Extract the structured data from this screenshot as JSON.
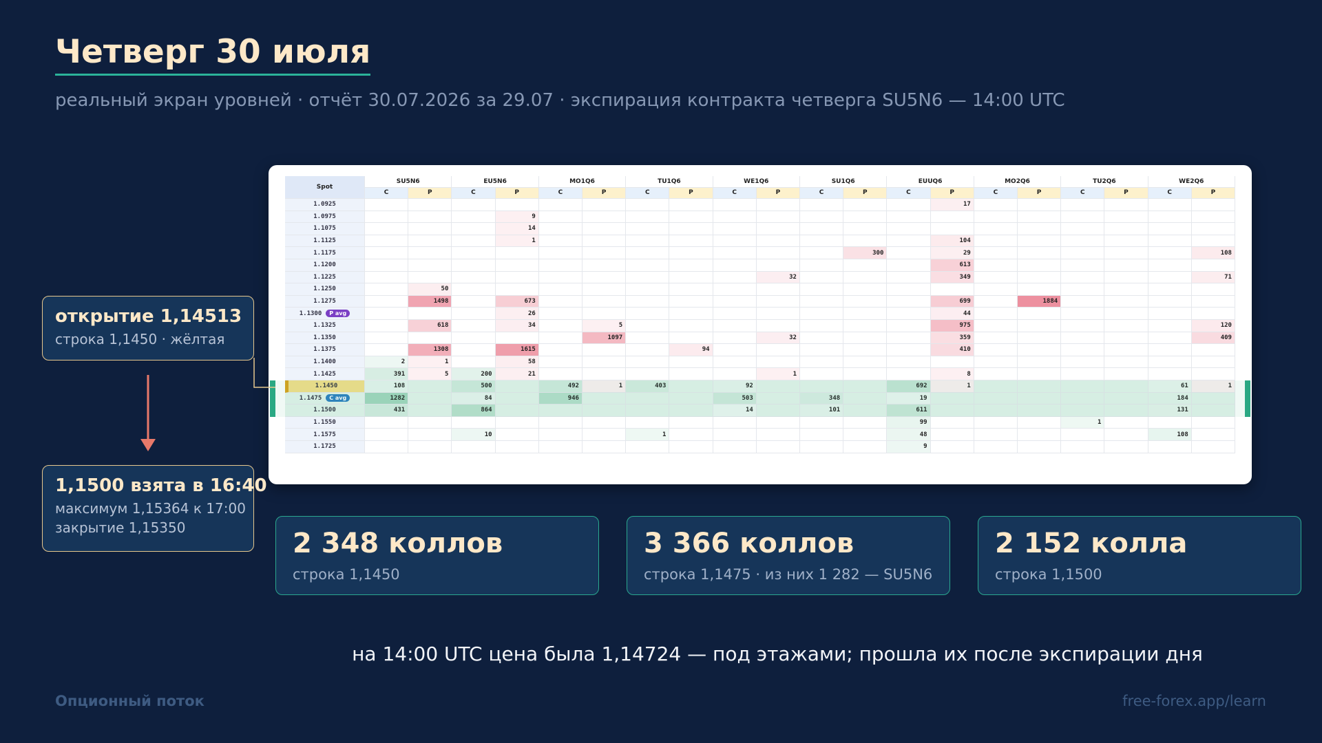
{
  "header": {
    "title": "Четверг 30 июля",
    "subtitle": "реальный экран уровней · отчёт 30.07.2026 за 29.07 · экспирация контракта четверга SU5N6 — 14:00 UTC"
  },
  "table": {
    "spot_header": "Spot",
    "columns": [
      "SU5N6",
      "EU5N6",
      "MO1Q6",
      "TU1Q6",
      "WE1Q6",
      "SU1Q6",
      "EUUQ6",
      "MO2Q6",
      "TU2Q6",
      "WE2Q6"
    ],
    "sides": [
      "C",
      "P"
    ],
    "rows": [
      {
        "spot": "1.0925",
        "cells": [
          null,
          null,
          null,
          null,
          null,
          null,
          null,
          null,
          null,
          null,
          null,
          null,
          null,
          17,
          null,
          null,
          null,
          null,
          null,
          null
        ]
      },
      {
        "spot": "1.0975",
        "cells": [
          null,
          null,
          null,
          9,
          null,
          null,
          null,
          null,
          null,
          null,
          null,
          null,
          null,
          null,
          null,
          null,
          null,
          null,
          null,
          null
        ]
      },
      {
        "spot": "1.1075",
        "cells": [
          null,
          null,
          null,
          14,
          null,
          null,
          null,
          null,
          null,
          null,
          null,
          null,
          null,
          null,
          null,
          null,
          null,
          null,
          null,
          null
        ]
      },
      {
        "spot": "1.1125",
        "cells": [
          null,
          null,
          null,
          1,
          null,
          null,
          null,
          null,
          null,
          null,
          null,
          null,
          null,
          104,
          null,
          null,
          null,
          null,
          null,
          null
        ]
      },
      {
        "spot": "1.1175",
        "cells": [
          null,
          null,
          null,
          null,
          null,
          null,
          null,
          null,
          null,
          null,
          null,
          300,
          null,
          29,
          null,
          null,
          null,
          null,
          null,
          108
        ]
      },
      {
        "spot": "1.1200",
        "cells": [
          null,
          null,
          null,
          null,
          null,
          null,
          null,
          null,
          null,
          null,
          null,
          null,
          null,
          613,
          null,
          null,
          null,
          null,
          null,
          null
        ]
      },
      {
        "spot": "1.1225",
        "cells": [
          null,
          null,
          null,
          null,
          null,
          null,
          null,
          null,
          null,
          32,
          null,
          null,
          null,
          349,
          null,
          null,
          null,
          null,
          null,
          71
        ]
      },
      {
        "spot": "1.1250",
        "cells": [
          null,
          50,
          null,
          null,
          null,
          null,
          null,
          null,
          null,
          null,
          null,
          null,
          null,
          null,
          null,
          null,
          null,
          null,
          null,
          null
        ]
      },
      {
        "spot": "1.1275",
        "cells": [
          null,
          1498,
          null,
          673,
          null,
          null,
          null,
          null,
          null,
          null,
          null,
          null,
          null,
          699,
          null,
          1884,
          null,
          null,
          null,
          null
        ]
      },
      {
        "spot": "1.1300",
        "badge": "P avg",
        "cells": [
          null,
          null,
          null,
          26,
          null,
          null,
          null,
          null,
          null,
          null,
          null,
          null,
          null,
          44,
          null,
          null,
          null,
          null,
          null,
          null
        ]
      },
      {
        "spot": "1.1325",
        "cells": [
          null,
          618,
          null,
          34,
          null,
          5,
          null,
          null,
          null,
          null,
          null,
          null,
          null,
          975,
          null,
          null,
          null,
          null,
          null,
          120
        ]
      },
      {
        "spot": "1.1350",
        "cells": [
          null,
          null,
          null,
          null,
          null,
          1097,
          null,
          null,
          null,
          32,
          null,
          null,
          null,
          359,
          null,
          null,
          null,
          null,
          null,
          409
        ]
      },
      {
        "spot": "1.1375",
        "cells": [
          null,
          1308,
          null,
          1615,
          null,
          null,
          null,
          94,
          null,
          null,
          null,
          null,
          null,
          410,
          null,
          null,
          null,
          null,
          null,
          null
        ]
      },
      {
        "spot": "1.1400",
        "cells": [
          2,
          1,
          null,
          58,
          null,
          null,
          null,
          null,
          null,
          null,
          null,
          null,
          null,
          null,
          null,
          null,
          null,
          null,
          null,
          null
        ]
      },
      {
        "spot": "1.1425",
        "cells": [
          391,
          5,
          200,
          21,
          null,
          null,
          null,
          null,
          null,
          1,
          null,
          null,
          null,
          8,
          null,
          null,
          null,
          null,
          null,
          null
        ]
      },
      {
        "spot": "1.1450",
        "highlight": true,
        "cells": [
          108,
          null,
          500,
          null,
          492,
          1,
          403,
          null,
          92,
          null,
          null,
          null,
          692,
          1,
          null,
          null,
          null,
          null,
          61,
          1
        ]
      },
      {
        "spot": "1.1475",
        "badge": "C avg",
        "highlight": true,
        "cells": [
          1282,
          null,
          84,
          null,
          946,
          null,
          null,
          null,
          503,
          null,
          348,
          null,
          19,
          null,
          null,
          null,
          null,
          null,
          184,
          null
        ]
      },
      {
        "spot": "1.1500",
        "highlight": true,
        "cells": [
          431,
          null,
          864,
          null,
          null,
          null,
          null,
          null,
          14,
          null,
          101,
          null,
          611,
          null,
          null,
          null,
          null,
          null,
          131,
          null
        ]
      },
      {
        "spot": "1.1550",
        "cells": [
          null,
          null,
          null,
          null,
          null,
          null,
          null,
          null,
          null,
          null,
          null,
          null,
          99,
          null,
          null,
          null,
          1,
          null,
          null,
          null
        ]
      },
      {
        "spot": "1.1575",
        "cells": [
          null,
          null,
          10,
          null,
          null,
          null,
          1,
          null,
          null,
          null,
          null,
          null,
          48,
          null,
          null,
          null,
          null,
          null,
          108,
          null
        ]
      },
      {
        "spot": "1.1725",
        "cells": [
          null,
          null,
          null,
          null,
          null,
          null,
          null,
          null,
          null,
          null,
          null,
          null,
          9,
          null,
          null,
          null,
          null,
          null,
          null,
          null
        ]
      }
    ]
  },
  "callouts": [
    {
      "title": "открытие 1,14513",
      "lines": [
        "строка 1,1450 · жёлтая"
      ]
    },
    {
      "title": "1,1500 взята в 16:40",
      "lines": [
        "максимум 1,15364 к 17:00",
        "закрытие 1,15350"
      ]
    }
  ],
  "stats": [
    {
      "value": "2 348 коллов",
      "caption": "строка 1,1450"
    },
    {
      "value": "3 366 коллов",
      "caption": "строка 1,1475 · из них 1 282 — SU5N6"
    },
    {
      "value": "2 152 колла",
      "caption": "строка 1,1500"
    }
  ],
  "conclusion": "на 14:00 UTC цена была 1,14724 — под этажами; прошла их после экспирации дня",
  "footer": {
    "brand": "Опционный поток",
    "url": "free-forex.app/learn"
  }
}
